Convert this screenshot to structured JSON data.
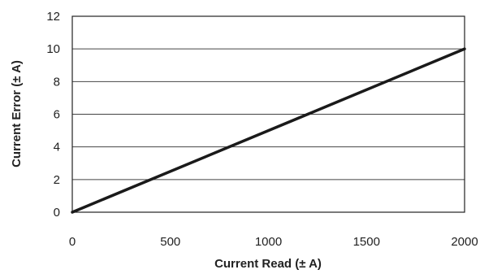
{
  "chart_data": {
    "type": "line",
    "title": "",
    "xlabel": "Current Read (± A)",
    "ylabel": "Current Error (± A)",
    "xlim": [
      0,
      2000
    ],
    "ylim": [
      0,
      12
    ],
    "xticks": [
      0,
      500,
      1000,
      1500,
      2000
    ],
    "yticks": [
      0,
      2,
      4,
      6,
      8,
      10,
      12
    ],
    "grid": "horizontal",
    "legend": "none",
    "series": [
      {
        "x": [
          0,
          2000
        ],
        "y": [
          0,
          10
        ],
        "color": "#1a1a1a"
      }
    ]
  }
}
